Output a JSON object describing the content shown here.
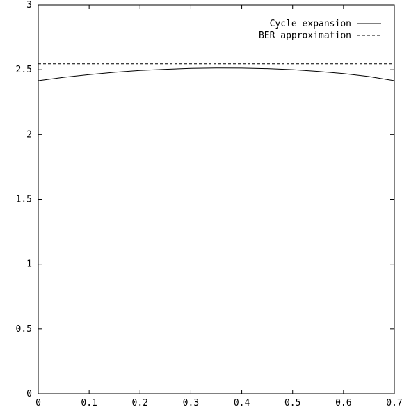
{
  "chart_data": {
    "type": "line",
    "title": "",
    "xlabel": "",
    "ylabel": "",
    "xlim": [
      0,
      0.7
    ],
    "ylim": [
      0,
      3
    ],
    "grid": false,
    "legend_position": "top-right",
    "x_ticks": [
      {
        "value": 0,
        "label": "0"
      },
      {
        "value": 0.1,
        "label": "0.1"
      },
      {
        "value": 0.2,
        "label": "0.2"
      },
      {
        "value": 0.3,
        "label": "0.3"
      },
      {
        "value": 0.4,
        "label": "0.4"
      },
      {
        "value": 0.5,
        "label": "0.5"
      },
      {
        "value": 0.6,
        "label": "0.6"
      },
      {
        "value": 0.7,
        "label": "0.7"
      }
    ],
    "y_ticks": [
      {
        "value": 0,
        "label": "0"
      },
      {
        "value": 0.5,
        "label": "0.5"
      },
      {
        "value": 1,
        "label": "1"
      },
      {
        "value": 1.5,
        "label": "1.5"
      },
      {
        "value": 2,
        "label": "2"
      },
      {
        "value": 2.5,
        "label": "2.5"
      },
      {
        "value": 3,
        "label": "3"
      }
    ],
    "series": [
      {
        "name": "Cycle expansion",
        "style": "solid",
        "color": "#000000",
        "x": [
          0,
          0.05,
          0.1,
          0.15,
          0.2,
          0.25,
          0.3,
          0.35,
          0.4,
          0.45,
          0.5,
          0.55,
          0.6,
          0.65,
          0.7
        ],
        "y": [
          2.415,
          2.441,
          2.462,
          2.48,
          2.494,
          2.503,
          2.51,
          2.513,
          2.512,
          2.508,
          2.5,
          2.487,
          2.47,
          2.447,
          2.415
        ]
      },
      {
        "name": "BER approximation",
        "style": "dashed",
        "color": "#000000",
        "x": [
          0,
          0.7
        ],
        "y": [
          2.545,
          2.545
        ]
      }
    ]
  }
}
